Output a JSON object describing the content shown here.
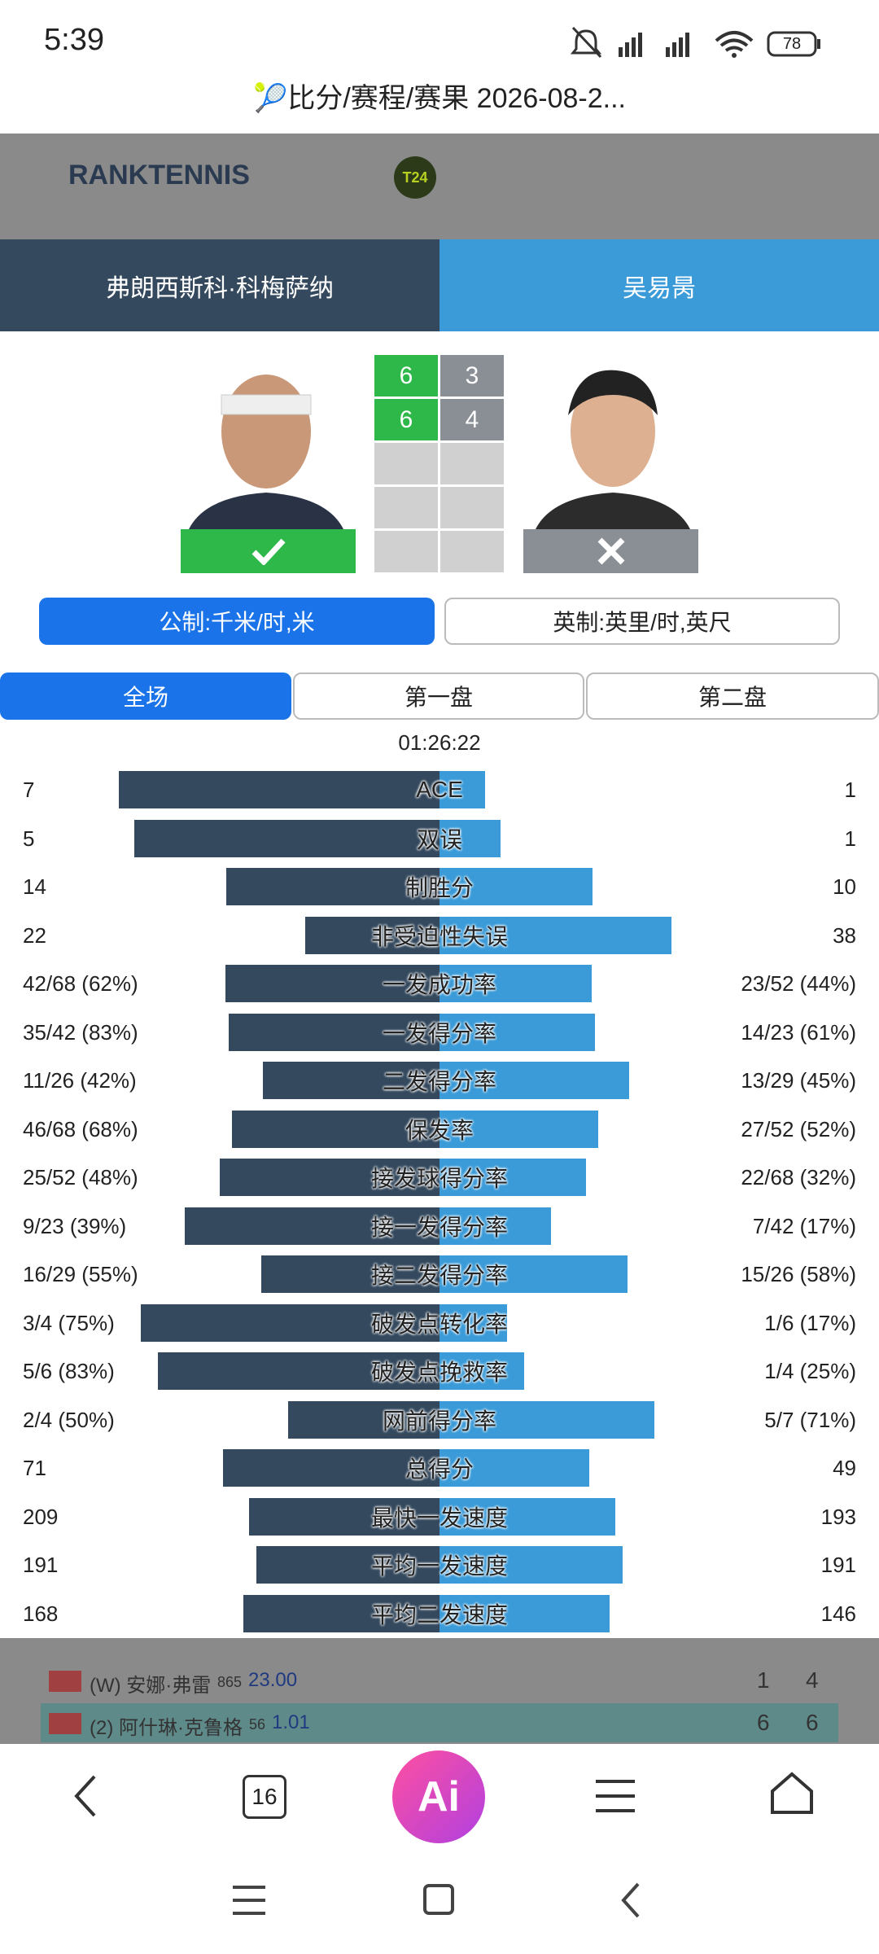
{
  "status_bar": {
    "time": "5:39",
    "battery": "78"
  },
  "browser_title": "🎾比分/赛程/赛果 2026-08-2...",
  "site_header": {
    "logo": "RANKTENNIS",
    "badge": "T24"
  },
  "players": {
    "left": "弗朗西斯科·科梅萨纳",
    "right": "吴易昺"
  },
  "score": [
    [
      "6",
      "3"
    ],
    [
      "6",
      "4"
    ],
    [
      null,
      null
    ],
    [
      null,
      null
    ],
    [
      null,
      null
    ]
  ],
  "units": {
    "metric": "公制:千米/时,米",
    "imperial": "英制:英里/时,英尺"
  },
  "tabs": [
    "全场",
    "第一盘",
    "第二盘"
  ],
  "duration": "01:26:22",
  "stats": [
    {
      "label": "ACE",
      "left": "7",
      "right": "1"
    },
    {
      "label": "双误",
      "left": "5",
      "right": "1"
    },
    {
      "label": "制胜分",
      "left": "14",
      "right": "10"
    },
    {
      "label": "非受迫性失误",
      "left": "22",
      "right": "38"
    },
    {
      "label": "一发成功率",
      "left": "42/68 (62%)",
      "right": "23/52 (44%)"
    },
    {
      "label": "一发得分率",
      "left": "35/42 (83%)",
      "right": "14/23 (61%)"
    },
    {
      "label": "二发得分率",
      "left": "11/26 (42%)",
      "right": "13/29 (45%)"
    },
    {
      "label": "保发率",
      "left": "46/68 (68%)",
      "right": "27/52 (52%)"
    },
    {
      "label": "接发球得分率",
      "left": "25/52 (48%)",
      "right": "22/68 (32%)"
    },
    {
      "label": "接一发得分率",
      "left": "9/23 (39%)",
      "right": "7/42 (17%)"
    },
    {
      "label": "接二发得分率",
      "left": "16/29 (55%)",
      "right": "15/26 (58%)"
    },
    {
      "label": "破发点转化率",
      "left": "3/4 (75%)",
      "right": "1/6 (17%)"
    },
    {
      "label": "破发点挽救率",
      "left": "5/6 (83%)",
      "right": "1/4 (25%)"
    },
    {
      "label": "网前得分率",
      "left": "2/4 (50%)",
      "right": "5/7 (71%)"
    },
    {
      "label": "总得分",
      "left": "71",
      "right": "49"
    },
    {
      "label": "最快一发速度",
      "left": "209",
      "right": "193"
    },
    {
      "label": "平均一发速度",
      "left": "191",
      "right": "191"
    },
    {
      "label": "平均二发速度",
      "left": "168",
      "right": "146"
    }
  ],
  "background_list": [
    {
      "name": "(W) 安娜·弗雷",
      "rank": "865",
      "odds": "23.00",
      "s1": "1",
      "s2": "4"
    },
    {
      "name": "(2) 阿什琳·克鲁格",
      "rank": "56",
      "odds": "1.01",
      "s1": "6",
      "s2": "6"
    }
  ],
  "browser_nav": {
    "tabs": "16",
    "ai": "Ai"
  }
}
